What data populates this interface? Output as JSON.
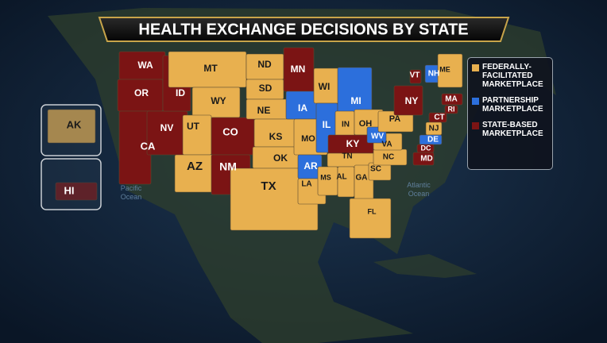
{
  "title": "HEALTH EXCHANGE DECISIONS BY STATE",
  "legend": [
    {
      "label": "FEDERALLY-FACILITATED MARKETPLACE",
      "color": "#e8b04f"
    },
    {
      "label": "PARTNERSHIP MARKETPLACE",
      "color": "#2c6fdc"
    },
    {
      "label": "STATE-BASED MARKETPLACE",
      "color": "#7b1414"
    }
  ],
  "oceans": [
    "Pacific Ocean",
    "Atlantic Ocean"
  ],
  "states": [
    {
      "label": "WA",
      "color": "#7b1414"
    },
    {
      "label": "OR",
      "color": "#7b1414"
    },
    {
      "label": "CA",
      "color": "#7b1414"
    },
    {
      "label": "NV",
      "color": "#7b1414"
    },
    {
      "label": "ID",
      "color": "#7b1414"
    },
    {
      "label": "MT",
      "color": "#e8b04f"
    },
    {
      "label": "WY",
      "color": "#e8b04f"
    },
    {
      "label": "UT",
      "color": "#e8b04f"
    },
    {
      "label": "AZ",
      "color": "#e8b04f"
    },
    {
      "label": "CO",
      "color": "#7b1414"
    },
    {
      "label": "NM",
      "color": "#7b1414"
    },
    {
      "label": "ND",
      "color": "#e8b04f"
    },
    {
      "label": "SD",
      "color": "#e8b04f"
    },
    {
      "label": "NE",
      "color": "#e8b04f"
    },
    {
      "label": "KS",
      "color": "#e8b04f"
    },
    {
      "label": "OK",
      "color": "#e8b04f"
    },
    {
      "label": "TX",
      "color": "#e8b04f"
    },
    {
      "label": "MN",
      "color": "#7b1414"
    },
    {
      "label": "IA",
      "color": "#2c6fdc"
    },
    {
      "label": "MO",
      "color": "#e8b04f"
    },
    {
      "label": "AR",
      "color": "#2c6fdc"
    },
    {
      "label": "LA",
      "color": "#e8b04f"
    },
    {
      "label": "WI",
      "color": "#e8b04f"
    },
    {
      "label": "IL",
      "color": "#2c6fdc"
    },
    {
      "label": "MI",
      "color": "#2c6fdc"
    },
    {
      "label": "IN",
      "color": "#e8b04f"
    },
    {
      "label": "OH",
      "color": "#e8b04f"
    },
    {
      "label": "KY",
      "color": "#7b1414"
    },
    {
      "label": "TN",
      "color": "#e8b04f"
    },
    {
      "label": "MS",
      "color": "#e8b04f"
    },
    {
      "label": "AL",
      "color": "#e8b04f"
    },
    {
      "label": "GA",
      "color": "#e8b04f"
    },
    {
      "label": "FL",
      "color": "#e8b04f"
    },
    {
      "label": "SC",
      "color": "#e8b04f"
    },
    {
      "label": "NC",
      "color": "#e8b04f"
    },
    {
      "label": "VA",
      "color": "#e8b04f"
    },
    {
      "label": "WV",
      "color": "#2c6fdc"
    },
    {
      "label": "PA",
      "color": "#e8b04f"
    },
    {
      "label": "NY",
      "color": "#7b1414"
    },
    {
      "label": "VT",
      "color": "#7b1414"
    },
    {
      "label": "NH",
      "color": "#2c6fdc"
    },
    {
      "label": "ME",
      "color": "#e8b04f"
    },
    {
      "label": "MA",
      "color": "#7b1414"
    },
    {
      "label": "RI",
      "color": "#7b1414"
    },
    {
      "label": "CT",
      "color": "#7b1414"
    },
    {
      "label": "NJ",
      "color": "#e8b04f"
    },
    {
      "label": "DE",
      "color": "#2c6fdc"
    },
    {
      "label": "MD",
      "color": "#7b1414"
    },
    {
      "label": "DC",
      "color": "#7b1414"
    },
    {
      "label": "AK",
      "color": "#e8b04f"
    },
    {
      "label": "HI",
      "color": "#7b1414"
    }
  ]
}
